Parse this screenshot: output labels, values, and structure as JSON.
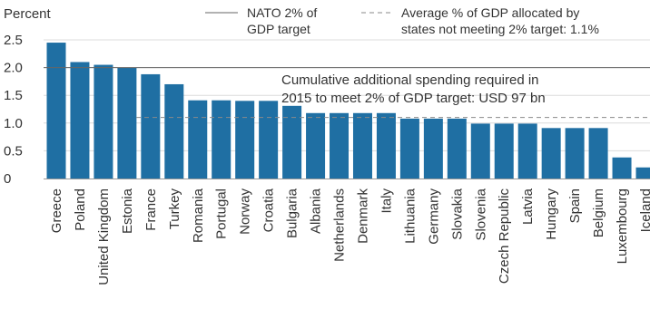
{
  "chart_data": {
    "type": "bar",
    "ylabel": "Percent",
    "ylim": [
      0,
      2.5
    ],
    "yticks": [
      0,
      0.5,
      1.0,
      1.5,
      2.0,
      2.5
    ],
    "ytick_labels": [
      "0",
      "0.5",
      "1.0",
      "1.5",
      "2.0",
      "2.5"
    ],
    "categories": [
      "Greece",
      "Poland",
      "United Kingdom",
      "Estonia",
      "France",
      "Turkey",
      "Romania",
      "Portugal",
      "Norway",
      "Croatia",
      "Bulgaria",
      "Albania",
      "Netherlands",
      "Denmark",
      "Italy",
      "Lithuania",
      "Germany",
      "Slovakia",
      "Slovenia",
      "Czech Republic",
      "Latvia",
      "Hungary",
      "Spain",
      "Belgium",
      "Luxembourg",
      "Iceland"
    ],
    "values": [
      2.45,
      2.1,
      2.05,
      2.0,
      1.88,
      1.7,
      1.41,
      1.41,
      1.4,
      1.4,
      1.31,
      1.18,
      1.18,
      1.18,
      1.18,
      1.08,
      1.08,
      1.08,
      0.99,
      0.99,
      0.99,
      0.91,
      0.91,
      0.91,
      0.38,
      0.2
    ],
    "reference_lines": [
      {
        "value": 2.0,
        "style": "solid",
        "label_lines": [
          "NATO 2% of",
          "GDP target"
        ]
      },
      {
        "value": 1.1,
        "style": "dashed",
        "label_lines": [
          "Average % of GDP allocated by",
          "states not meeting 2% target: 1.1%"
        ]
      }
    ],
    "annotation_lines": [
      "Cumulative additional spending required in",
      "2015 to meet 2% of GDP target: USD 97 bn"
    ],
    "grid": true,
    "legend_position": "top-right"
  },
  "colors": {
    "bar": "#1f6fa3",
    "grid": "#dcdcdc",
    "axis": "#999999",
    "target_line": "#666666",
    "average_line": "#8a8a8a",
    "text": "#333333"
  }
}
